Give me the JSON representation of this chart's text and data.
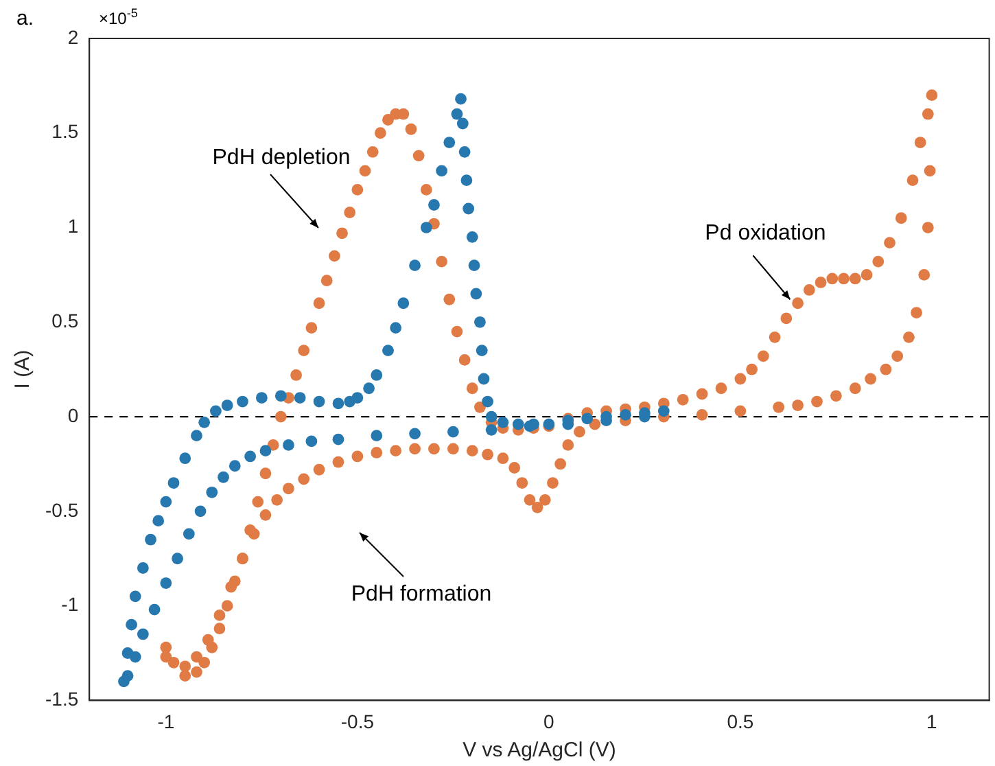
{
  "chart_data": {
    "type": "scatter",
    "xlabel": "V vs Ag/AgCl (V)",
    "ylabel": "I (A)",
    "marker": "circle",
    "grid": false,
    "legend": false,
    "xlim": [
      -1.2,
      1.15
    ],
    "ylim": [
      -1.5,
      2
    ],
    "xticks": [
      -1,
      -0.5,
      0,
      0.5,
      1
    ],
    "yticks": [
      -1.5,
      -1,
      -0.5,
      0,
      0.5,
      1,
      1.5,
      2
    ],
    "ref_lines": [
      {
        "axis": "y",
        "value": 0,
        "color": "#000000",
        "line_style": "dashed"
      }
    ],
    "annotations": [
      "a.",
      "×10$^{-5}$",
      "PdH depletion",
      {
        "text": "Pd oxidation",
        "x": 0.63,
        "y": 0.62
      },
      "PdH formation"
    ],
    "series": [
      {
        "color": "#2878b0",
        "x": [
          -1.11,
          -1.1,
          -1.09,
          -1.08,
          -1.06,
          -1.04,
          -1.02,
          -1.0,
          -0.98,
          -0.95,
          -0.92,
          -0.9,
          -0.87,
          -0.84,
          -0.8,
          -0.75,
          -0.7,
          -0.65,
          -0.6,
          -0.55,
          -0.52,
          -0.5,
          -0.47,
          -0.45,
          -0.42,
          -0.4,
          -0.38,
          -0.35,
          -0.32,
          -0.3,
          -0.28,
          -0.26,
          -0.24,
          -0.23,
          -0.225,
          -0.22,
          -0.215,
          -0.21,
          -0.2,
          -0.195,
          -0.19,
          -0.18,
          -0.175,
          -0.17,
          -0.16,
          -0.15,
          -0.12,
          -0.08,
          -0.04,
          0,
          0.05,
          0.1,
          0.15,
          0.2,
          0.25,
          0.3,
          0.25,
          0.15,
          0.05,
          -0.05,
          -0.15,
          -0.25,
          -0.35,
          -0.45,
          -0.55,
          -0.62,
          -0.68,
          -0.74,
          -0.78,
          -0.82,
          -0.85,
          -0.88,
          -0.91,
          -0.94,
          -0.97,
          -1.0,
          -1.03,
          -1.06,
          -1.08,
          -1.1
        ],
        "values": [
          -1.4,
          -1.25,
          -1.1,
          -0.95,
          -0.8,
          -0.65,
          -0.55,
          -0.45,
          -0.35,
          -0.22,
          -0.1,
          -0.03,
          0.03,
          0.06,
          0.08,
          0.1,
          0.11,
          0.1,
          0.08,
          0.07,
          0.08,
          0.1,
          0.15,
          0.22,
          0.35,
          0.47,
          0.6,
          0.8,
          1.0,
          1.12,
          1.3,
          1.45,
          1.6,
          1.68,
          1.55,
          1.4,
          1.25,
          1.1,
          0.95,
          0.8,
          0.65,
          0.5,
          0.35,
          0.2,
          0.08,
          0.0,
          -0.03,
          -0.04,
          -0.04,
          -0.04,
          -0.02,
          -0.01,
          0.0,
          0.01,
          0.02,
          0.03,
          0.0,
          -0.02,
          -0.04,
          -0.05,
          -0.07,
          -0.08,
          -0.09,
          -0.1,
          -0.12,
          -0.13,
          -0.15,
          -0.18,
          -0.21,
          -0.26,
          -0.32,
          -0.4,
          -0.5,
          -0.62,
          -0.75,
          -0.88,
          -1.02,
          -1.15,
          -1.27,
          -1.37
        ]
      },
      {
        "color": "#e07b45",
        "x": [
          -0.95,
          -0.92,
          -0.9,
          -0.88,
          -0.86,
          -0.84,
          -0.82,
          -0.8,
          -0.78,
          -0.76,
          -0.74,
          -0.72,
          -0.7,
          -0.68,
          -0.66,
          -0.64,
          -0.62,
          -0.6,
          -0.58,
          -0.56,
          -0.54,
          -0.52,
          -0.5,
          -0.48,
          -0.46,
          -0.44,
          -0.42,
          -0.4,
          -0.38,
          -0.36,
          -0.34,
          -0.32,
          -0.3,
          -0.28,
          -0.26,
          -0.24,
          -0.22,
          -0.2,
          -0.18,
          -0.15,
          -0.12,
          -0.08,
          -0.04,
          0,
          0.05,
          0.1,
          0.15,
          0.2,
          0.25,
          0.3,
          0.35,
          0.4,
          0.45,
          0.5,
          0.53,
          0.56,
          0.59,
          0.62,
          0.65,
          0.68,
          0.71,
          0.74,
          0.77,
          0.8,
          0.83,
          0.86,
          0.89,
          0.92,
          0.95,
          0.97,
          0.99,
          1.0,
          0.995,
          0.99,
          0.98,
          0.96,
          0.94,
          0.91,
          0.88,
          0.84,
          0.8,
          0.75,
          0.7,
          0.65,
          0.6,
          0.5,
          0.4,
          0.3,
          0.2,
          0.12,
          0.08,
          0.05,
          0.03,
          0.01,
          -0.01,
          -0.03,
          -0.05,
          -0.07,
          -0.09,
          -0.12,
          -0.16,
          -0.2,
          -0.25,
          -0.3,
          -0.35,
          -0.4,
          -0.45,
          -0.5,
          -0.55,
          -0.6,
          -0.64,
          -0.68,
          -0.71,
          -0.74,
          -0.77,
          -0.8,
          -0.83,
          -0.86,
          -0.89,
          -0.92,
          -0.95,
          -0.98,
          -1.0,
          -1.0
        ],
        "values": [
          -1.37,
          -1.35,
          -1.3,
          -1.22,
          -1.12,
          -1.0,
          -0.87,
          -0.75,
          -0.6,
          -0.45,
          -0.3,
          -0.15,
          0.0,
          0.1,
          0.22,
          0.35,
          0.47,
          0.6,
          0.72,
          0.85,
          0.97,
          1.08,
          1.2,
          1.3,
          1.4,
          1.5,
          1.57,
          1.6,
          1.6,
          1.52,
          1.38,
          1.2,
          1.02,
          0.82,
          0.62,
          0.45,
          0.3,
          0.15,
          0.05,
          -0.03,
          -0.06,
          -0.07,
          -0.06,
          -0.05,
          -0.01,
          0.02,
          0.03,
          0.04,
          0.05,
          0.07,
          0.09,
          0.12,
          0.15,
          0.2,
          0.25,
          0.32,
          0.42,
          0.52,
          0.6,
          0.67,
          0.71,
          0.73,
          0.73,
          0.73,
          0.75,
          0.82,
          0.92,
          1.05,
          1.25,
          1.45,
          1.6,
          1.7,
          1.3,
          1.0,
          0.75,
          0.55,
          0.42,
          0.32,
          0.25,
          0.2,
          0.15,
          0.11,
          0.08,
          0.06,
          0.05,
          0.03,
          0.01,
          0.0,
          -0.02,
          -0.04,
          -0.08,
          -0.15,
          -0.25,
          -0.35,
          -0.44,
          -0.48,
          -0.44,
          -0.35,
          -0.27,
          -0.22,
          -0.2,
          -0.18,
          -0.17,
          -0.17,
          -0.17,
          -0.18,
          -0.19,
          -0.21,
          -0.24,
          -0.28,
          -0.33,
          -0.38,
          -0.44,
          -0.52,
          -0.62,
          -0.75,
          -0.9,
          -1.05,
          -1.18,
          -1.27,
          -1.32,
          -1.3,
          -1.27,
          -1.22
        ]
      }
    ]
  }
}
